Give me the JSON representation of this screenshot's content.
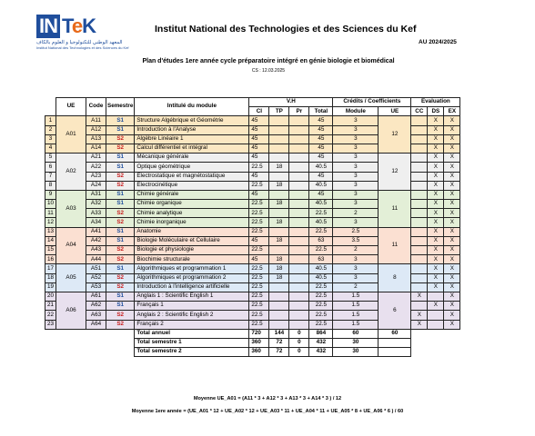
{
  "header": {
    "logo_text_in": "IN",
    "logo_text_tek_t": "T",
    "logo_text_tek_e": "e",
    "logo_text_tek_k": "K",
    "logo_arabic": "المعهد الوطني للتكنولوجيا و العلوم بالكاف",
    "logo_french": "Institut National des Technologies et des Sciences du Kef",
    "institute_title": "Institut National des Technologies et des Sciences du Kef",
    "academic_year": "AU 2024/2025",
    "plan_title": "Plan d'études 1ere année cycle préparatoire intégré en génie biologie et biomédical",
    "cs_date": "CS : 12.03.2025"
  },
  "table": {
    "headers": {
      "ue": "UE",
      "code": "Code",
      "semestre": "Semestre",
      "intitule": "Intitulé du module",
      "vh": "V.H",
      "credits": "Crédits / Coefficients",
      "evaluation": "Evaluation",
      "ci": "CI",
      "tp": "TP",
      "pr": "Pr",
      "total": "Total",
      "module": "Module",
      "ue_col": "UE",
      "cc": "CC",
      "ds": "DS",
      "ex": "EX"
    },
    "ue_groups": [
      {
        "ue": "A01",
        "ue_credit": "12"
      },
      {
        "ue": "A02",
        "ue_credit": "12"
      },
      {
        "ue": "A03",
        "ue_credit": "11"
      },
      {
        "ue": "A04",
        "ue_credit": "11"
      },
      {
        "ue": "A05",
        "ue_credit": "8"
      },
      {
        "ue": "A06",
        "ue_credit": "6"
      }
    ],
    "rows": [
      {
        "n": "1",
        "code": "A11",
        "sem": "S1",
        "title": "Structure Algébrique et Géométrie",
        "ci": "45",
        "tp": "",
        "pr": "",
        "total": "45",
        "module": "3",
        "cc": "",
        "ds": "X",
        "ex": "X"
      },
      {
        "n": "2",
        "code": "A12",
        "sem": "S1",
        "title": "Introduction à l'Analyse",
        "ci": "45",
        "tp": "",
        "pr": "",
        "total": "45",
        "module": "3",
        "cc": "",
        "ds": "X",
        "ex": "X"
      },
      {
        "n": "3",
        "code": "A13",
        "sem": "S2",
        "title": "Algèbre Linéaire 1",
        "ci": "45",
        "tp": "",
        "pr": "",
        "total": "45",
        "module": "3",
        "cc": "",
        "ds": "X",
        "ex": "X"
      },
      {
        "n": "4",
        "code": "A14",
        "sem": "S2",
        "title": "Calcul différentiel et intégral",
        "ci": "45",
        "tp": "",
        "pr": "",
        "total": "45",
        "module": "3",
        "cc": "",
        "ds": "X",
        "ex": "X"
      },
      {
        "n": "5",
        "code": "A21",
        "sem": "S1",
        "title": "Mécanique générale",
        "ci": "45",
        "tp": "",
        "pr": "",
        "total": "45",
        "module": "3",
        "cc": "",
        "ds": "X",
        "ex": "X"
      },
      {
        "n": "6",
        "code": "A22",
        "sem": "S1",
        "title": "Optique géométrique",
        "ci": "22.5",
        "tp": "18",
        "pr": "",
        "total": "40.5",
        "module": "3",
        "cc": "",
        "ds": "X",
        "ex": "X"
      },
      {
        "n": "7",
        "code": "A23",
        "sem": "S2",
        "title": "Electrostatique et magnétostatique",
        "ci": "45",
        "tp": "",
        "pr": "",
        "total": "45",
        "module": "3",
        "cc": "",
        "ds": "X",
        "ex": "X"
      },
      {
        "n": "8",
        "code": "A24",
        "sem": "S2",
        "title": "Electrocinétique",
        "ci": "22.5",
        "tp": "18",
        "pr": "",
        "total": "40.5",
        "module": "3",
        "cc": "",
        "ds": "X",
        "ex": "X"
      },
      {
        "n": "9",
        "code": "A31",
        "sem": "S1",
        "title": "Chimie générale",
        "ci": "45",
        "tp": "",
        "pr": "",
        "total": "45",
        "module": "3",
        "cc": "",
        "ds": "X",
        "ex": "X"
      },
      {
        "n": "10",
        "code": "A32",
        "sem": "S1",
        "title": "Chimie organique",
        "ci": "22.5",
        "tp": "18",
        "pr": "",
        "total": "40.5",
        "module": "3",
        "cc": "",
        "ds": "X",
        "ex": "X"
      },
      {
        "n": "11",
        "code": "A33",
        "sem": "S2",
        "title": "Chimie analytique",
        "ci": "22.5",
        "tp": "",
        "pr": "",
        "total": "22.5",
        "module": "2",
        "cc": "",
        "ds": "X",
        "ex": "X"
      },
      {
        "n": "12",
        "code": "A34",
        "sem": "S2",
        "title": "Chimie inorganique",
        "ci": "22.5",
        "tp": "18",
        "pr": "",
        "total": "40.5",
        "module": "3",
        "cc": "",
        "ds": "X",
        "ex": "X"
      },
      {
        "n": "13",
        "code": "A41",
        "sem": "S1",
        "title": "Anatomie",
        "ci": "22.5",
        "tp": "",
        "pr": "",
        "total": "22.5",
        "module": "2.5",
        "cc": "",
        "ds": "X",
        "ex": "X"
      },
      {
        "n": "14",
        "code": "A42",
        "sem": "S1",
        "title": "Biologie Moléculaire et Cellulaire",
        "ci": "45",
        "tp": "18",
        "pr": "",
        "total": "63",
        "module": "3.5",
        "cc": "",
        "ds": "X",
        "ex": "X"
      },
      {
        "n": "15",
        "code": "A43",
        "sem": "S2",
        "title": "Biologie et physiologie",
        "ci": "22.5",
        "tp": "",
        "pr": "",
        "total": "22.5",
        "module": "2",
        "cc": "",
        "ds": "X",
        "ex": "X"
      },
      {
        "n": "16",
        "code": "A44",
        "sem": "S2",
        "title": "Biochimie structurale",
        "ci": "45",
        "tp": "18",
        "pr": "",
        "total": "63",
        "module": "3",
        "cc": "",
        "ds": "X",
        "ex": "X"
      },
      {
        "n": "17",
        "code": "A51",
        "sem": "S1",
        "title": "Algorithmiques et programmation 1",
        "ci": "22.5",
        "tp": "18",
        "pr": "",
        "total": "40.5",
        "module": "3",
        "cc": "",
        "ds": "X",
        "ex": "X"
      },
      {
        "n": "18",
        "code": "A52",
        "sem": "S2",
        "title": "Algorithmiques et programmation 2",
        "ci": "22.5",
        "tp": "18",
        "pr": "",
        "total": "40.5",
        "module": "3",
        "cc": "",
        "ds": "X",
        "ex": "X"
      },
      {
        "n": "19",
        "code": "A53",
        "sem": "S2",
        "title": "Introduction à l'intelligence artificielle",
        "ci": "22.5",
        "tp": "",
        "pr": "",
        "total": "22.5",
        "module": "2",
        "cc": "",
        "ds": "X",
        "ex": "X"
      },
      {
        "n": "20",
        "code": "A61",
        "sem": "S1",
        "title": "Anglais 1 : Scientific English 1",
        "ci": "22.5",
        "tp": "",
        "pr": "",
        "total": "22.5",
        "module": "1.5",
        "cc": "X",
        "ds": "",
        "ex": "X"
      },
      {
        "n": "21",
        "code": "A62",
        "sem": "S1",
        "title": "Français 1",
        "ci": "22.5",
        "tp": "",
        "pr": "",
        "total": "22.5",
        "module": "1.5",
        "cc": "",
        "ds": "X",
        "ex": "X"
      },
      {
        "n": "22",
        "code": "A63",
        "sem": "S2",
        "title": "Anglais 2 : Scientific English 2",
        "ci": "22.5",
        "tp": "",
        "pr": "",
        "total": "22.5",
        "module": "1.5",
        "cc": "X",
        "ds": "",
        "ex": "X"
      },
      {
        "n": "23",
        "code": "A64",
        "sem": "S2",
        "title": "Français 2",
        "ci": "22.5",
        "tp": "",
        "pr": "",
        "total": "22.5",
        "module": "1.5",
        "cc": "X",
        "ds": "",
        "ex": "X"
      }
    ],
    "totals": [
      {
        "label": "Total annuel",
        "ci": "720",
        "tp": "144",
        "pr": "0",
        "total": "864",
        "module": "60",
        "ue": "60"
      },
      {
        "label": "Total semestre 1",
        "ci": "360",
        "tp": "72",
        "pr": "0",
        "total": "432",
        "module": "30",
        "ue": ""
      },
      {
        "label": "Total semestre 2",
        "ci": "360",
        "tp": "72",
        "pr": "0",
        "total": "432",
        "module": "30",
        "ue": ""
      }
    ]
  },
  "formulas": {
    "moyenne_ue_a01": "Moyenne UE_A01 = (A11 * 3 + A12 * 3 + A13 * 3 + A14 * 3 ) / 12",
    "moyenne_annee": "Moyenne 1ere année = (UE_A01 * 12 + UE_A02 * 12 + UE_A03 * 11 + UE_A04 * 11 + UE_A05 * 8 + UE_A06 * 6 ) / 60"
  },
  "colors": {
    "s1": "#1f4e9c",
    "s2": "#c81e1e",
    "ue_a01": "#fbe7c2",
    "ue_a02": "#efefef",
    "ue_a03": "#e3efd7",
    "ue_a04": "#fbe0d2",
    "ue_a05": "#dde9f6",
    "ue_a06": "#e8e0ee"
  }
}
